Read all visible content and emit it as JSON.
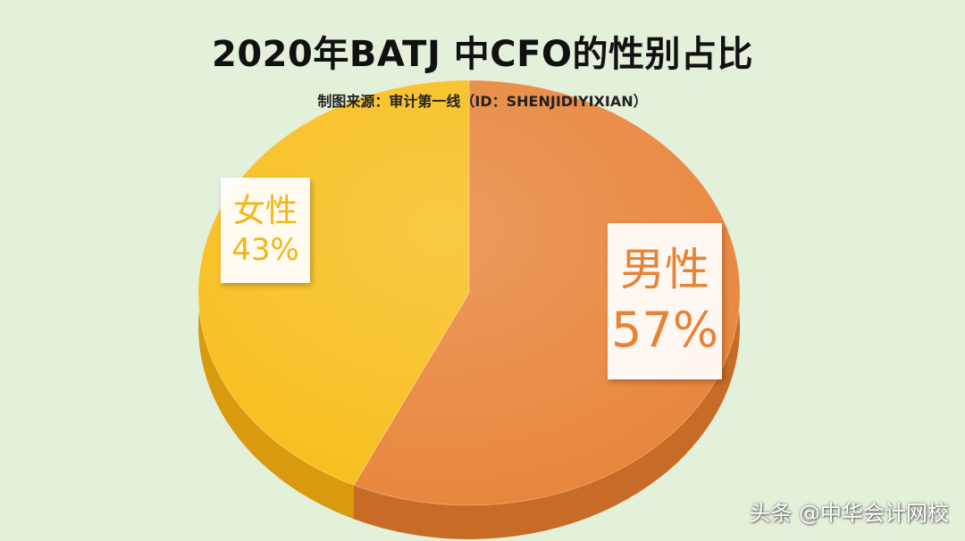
{
  "chart_data": {
    "type": "pie",
    "title": "2020年BATJ 中CFO的性别占比",
    "subtitle": "制图来源：审计第一线（ID：SHENJIDIYIXIAN）",
    "slices": [
      {
        "name": "男性",
        "value": 57,
        "label": "57%",
        "color": "#e8853b",
        "side": "#c86b26"
      },
      {
        "name": "女性",
        "value": 43,
        "label": "43%",
        "color": "#f7be1b",
        "side": "#d99a10"
      }
    ],
    "legend": "none"
  },
  "watermark": "头条 @中华会计网校"
}
